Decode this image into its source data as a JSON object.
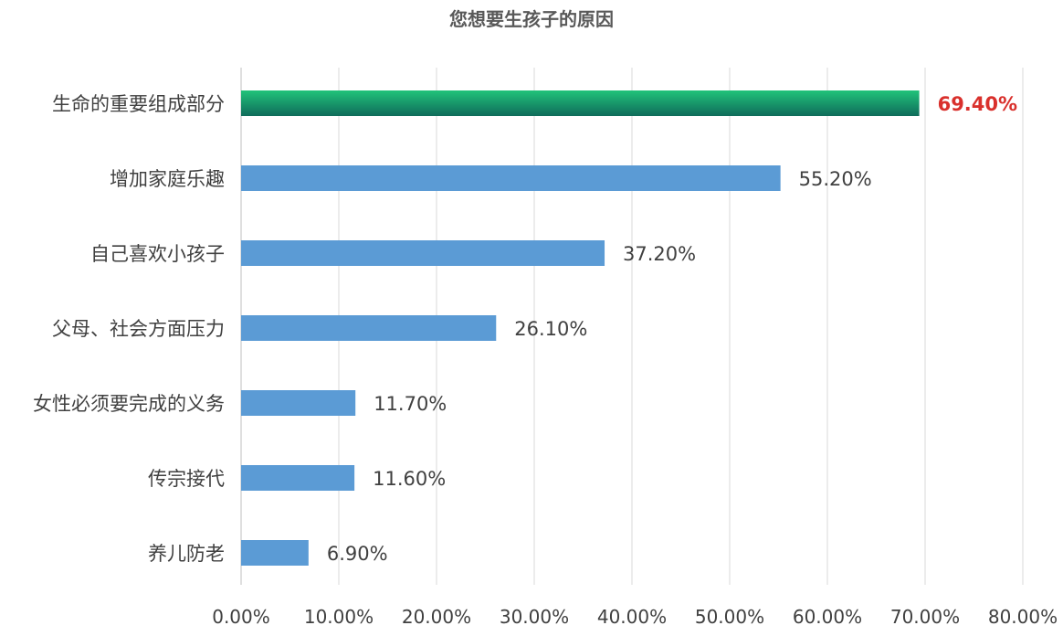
{
  "chart_data": {
    "type": "bar",
    "orientation": "horizontal",
    "title": "您想要生孩子的原因",
    "xlabel": "",
    "ylabel": "",
    "xlim": [
      0,
      80
    ],
    "x_ticks": [
      "0.00%",
      "10.00%",
      "20.00%",
      "30.00%",
      "40.00%",
      "50.00%",
      "60.00%",
      "70.00%",
      "80.00%"
    ],
    "grid": true,
    "categories": [
      "生命的重要组成部分",
      "增加家庭乐趣",
      "自己喜欢小孩子",
      "父母、社会方面压力",
      "女性必须要完成的义务",
      "传宗接代",
      "养儿防老"
    ],
    "values": [
      69.4,
      55.2,
      37.2,
      26.1,
      11.7,
      11.6,
      6.9
    ],
    "value_labels": [
      "69.40%",
      "55.20%",
      "37.20%",
      "26.10%",
      "11.70%",
      "11.60%",
      "6.90%"
    ],
    "highlight_index": 0,
    "colors": {
      "bar": "#5b9bd5",
      "highlight_bar_top": "#21c37a",
      "highlight_bar_bottom": "#0f6b5a",
      "highlight_label": "#d9302c"
    }
  }
}
